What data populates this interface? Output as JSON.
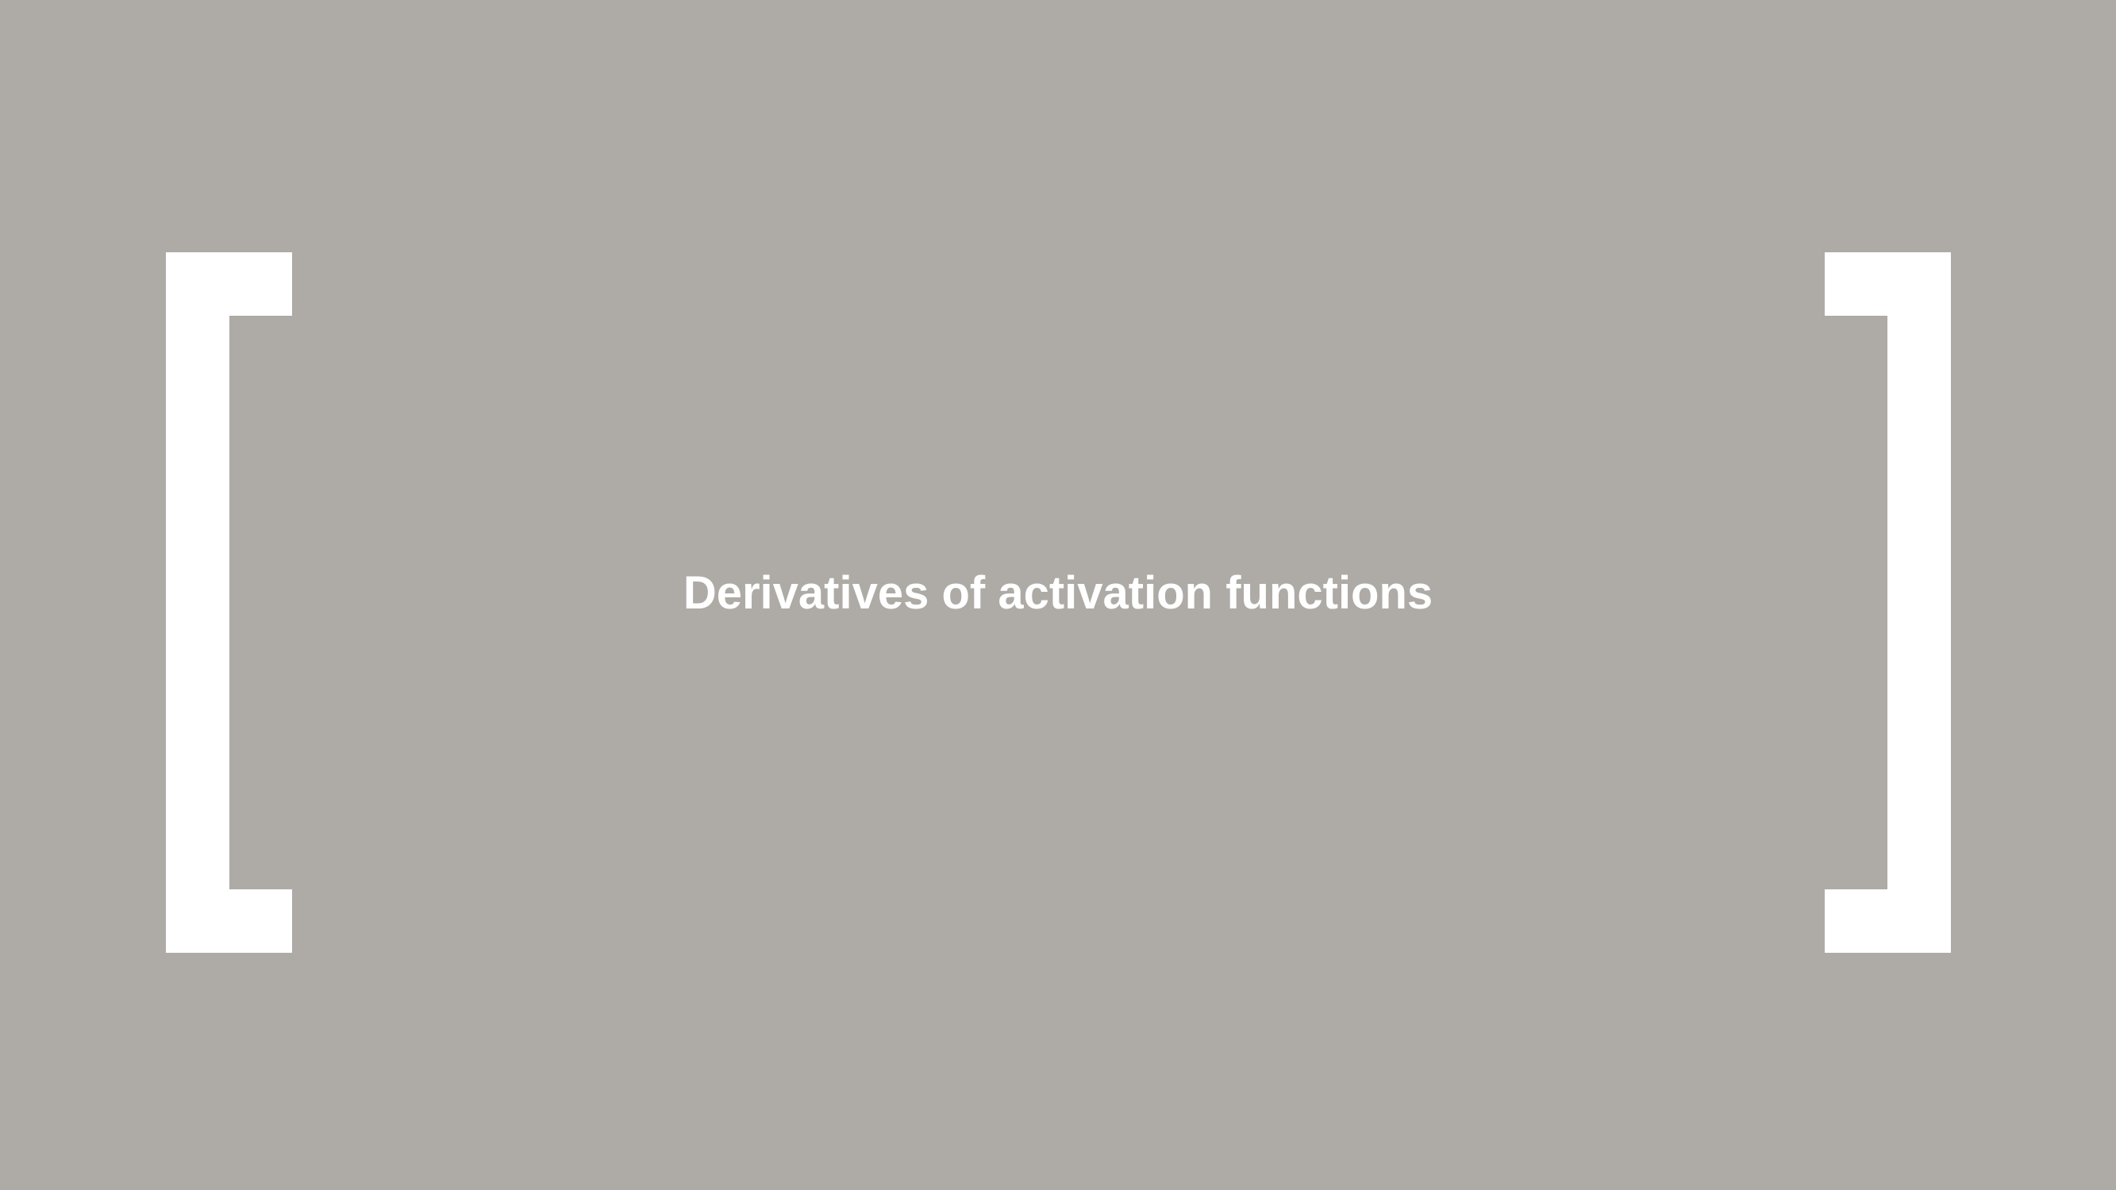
{
  "slide": {
    "title": "Derivatives of activation functions",
    "background_color": "#aeaaa6",
    "accent_color": "#ffffff"
  },
  "decorations": {
    "left_bracket": "left-bracket-shape",
    "right_bracket": "right-bracket-shape"
  }
}
